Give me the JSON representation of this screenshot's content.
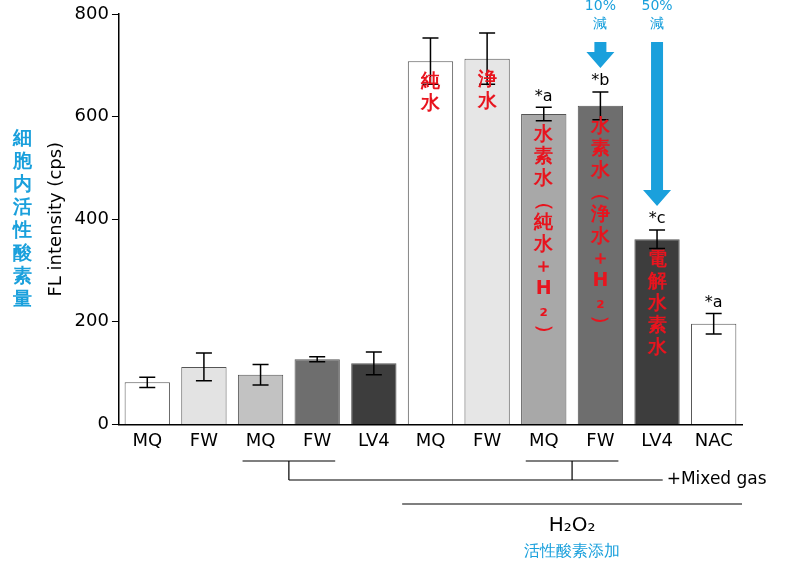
{
  "chart_data": {
    "type": "bar",
    "categories": [
      "MQ",
      "FW",
      "MQ",
      "FW",
      "LV4",
      "MQ",
      "FW",
      "MQ",
      "FW",
      "LV4",
      "NAC"
    ],
    "values": [
      82,
      112,
      97,
      127,
      119,
      708,
      713,
      605,
      621,
      361,
      196
    ],
    "error": [
      10,
      27,
      20,
      5,
      22,
      45,
      50,
      13,
      27,
      18,
      20
    ],
    "colors": [
      "#ffffff",
      "#e3e3e3",
      "#c2c2c2",
      "#6e6e6e",
      "#3d3d3d",
      "#ffffff",
      "#e6e6e6",
      "#a8a8a8",
      "#6e6e6e",
      "#3d3d3d",
      "#ffffff"
    ],
    "ylim": [
      0,
      800
    ],
    "yticks": [
      0,
      200,
      400,
      600,
      800
    ],
    "y_label": "FL intensity (cps)",
    "y_label_note": "細胞内活性酸素量",
    "grid": false,
    "significance": [
      null,
      null,
      null,
      null,
      null,
      null,
      null,
      "*a",
      "*b",
      "*c",
      "*a"
    ],
    "bar_texts": [
      null,
      null,
      null,
      null,
      null,
      "純水",
      "浄水",
      "水素水（純水＋H₂）",
      "水素水（浄水＋H₂）",
      "電解水素水",
      null
    ],
    "reduction_labels": [
      null,
      null,
      null,
      null,
      null,
      null,
      null,
      null,
      [
        "10%",
        "減"
      ],
      [
        "50%",
        "減"
      ],
      null
    ],
    "mixed_gas": [
      false,
      false,
      true,
      true,
      false,
      false,
      false,
      true,
      true,
      false,
      false
    ],
    "mixed_gas_label": "+Mixed gas",
    "h2o2": [
      false,
      false,
      false,
      false,
      false,
      true,
      true,
      true,
      true,
      true,
      true
    ],
    "h2o2_label": "H₂O₂",
    "h2o2_note": "活性酸素添加"
  }
}
